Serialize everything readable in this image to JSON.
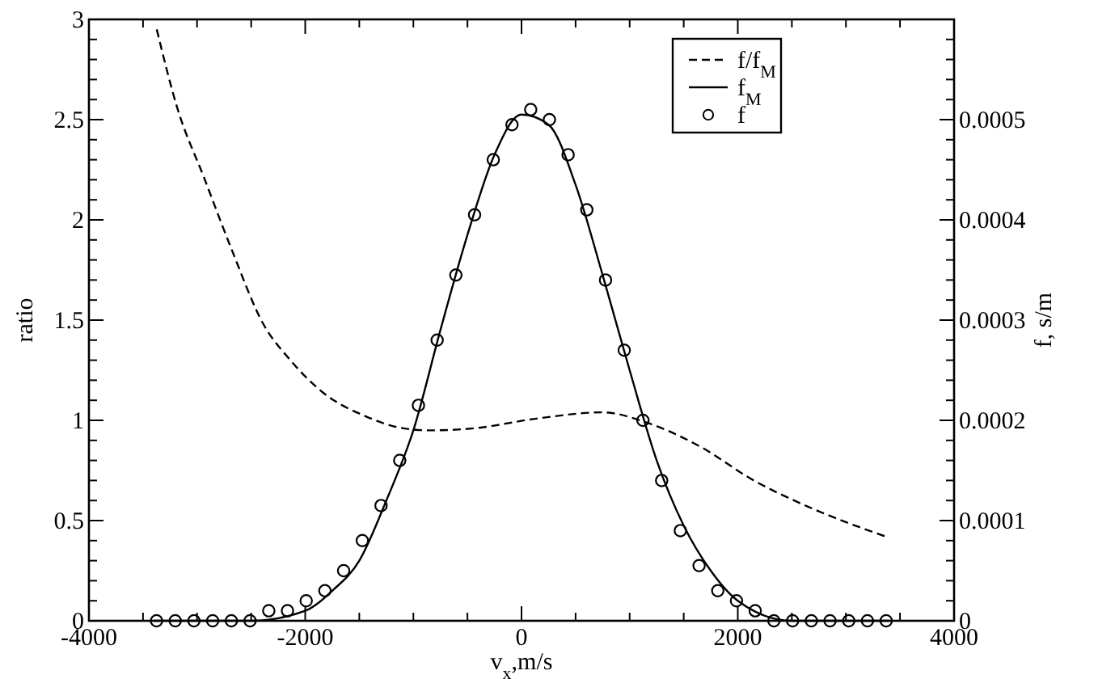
{
  "chart_data": {
    "type": "line",
    "xlabel": "v$_{x}$,m/s",
    "ylabel": "ratio",
    "y2label": "f, s/m",
    "xlim": [
      -4000,
      4000
    ],
    "xticks": [
      -4000,
      {
        "value": -3500,
        "label": null
      },
      {
        "value": -3000,
        "label": null
      },
      {
        "value": -2500,
        "label": null
      },
      -2000,
      {
        "value": -1500,
        "label": null
      },
      {
        "value": -1000,
        "label": null
      },
      {
        "value": -500,
        "label": null
      },
      0,
      {
        "value": 500,
        "label": null
      },
      {
        "value": 1000,
        "label": null
      },
      {
        "value": 1500,
        "label": null
      },
      2000,
      {
        "value": 2500,
        "label": null
      },
      {
        "value": 3000,
        "label": null
      },
      {
        "value": 3500,
        "label": null
      },
      4000
    ],
    "ylim": [
      0,
      3
    ],
    "yticks": [
      0,
      {
        "value": 0.1,
        "label": null
      },
      {
        "value": 0.2,
        "label": null
      },
      {
        "value": 0.3,
        "label": null
      },
      {
        "value": 0.4,
        "label": null
      },
      0.5,
      {
        "value": 0.6,
        "label": null
      },
      {
        "value": 0.7,
        "label": null
      },
      {
        "value": 0.8,
        "label": null
      },
      {
        "value": 0.9,
        "label": null
      },
      1,
      {
        "value": 1.1,
        "label": null
      },
      {
        "value": 1.2,
        "label": null
      },
      {
        "value": 1.3,
        "label": null
      },
      {
        "value": 1.4,
        "label": null
      },
      1.5,
      {
        "value": 1.6,
        "label": null
      },
      {
        "value": 1.7,
        "label": null
      },
      {
        "value": 1.8,
        "label": null
      },
      {
        "value": 1.9,
        "label": null
      },
      2,
      {
        "value": 2.1,
        "label": null
      },
      {
        "value": 2.2,
        "label": null
      },
      {
        "value": 2.3,
        "label": null
      },
      {
        "value": 2.4,
        "label": null
      },
      2.5,
      {
        "value": 2.6,
        "label": null
      },
      {
        "value": 2.7,
        "label": null
      },
      {
        "value": 2.8,
        "label": null
      },
      {
        "value": 2.9,
        "label": null
      },
      3
    ],
    "y2lim": [
      0,
      0.0006
    ],
    "y2ticks": [
      0,
      {
        "value": 2e-05,
        "label": null
      },
      {
        "value": 4e-05,
        "label": null
      },
      {
        "value": 6e-05,
        "label": null
      },
      {
        "value": 8e-05,
        "label": null
      },
      0.0001,
      {
        "value": 0.00012,
        "label": null
      },
      {
        "value": 0.00014,
        "label": null
      },
      {
        "value": 0.00016,
        "label": null
      },
      {
        "value": 0.00018,
        "label": null
      },
      0.0002,
      {
        "value": 0.00022,
        "label": null
      },
      {
        "value": 0.00024,
        "label": null
      },
      {
        "value": 0.00026,
        "label": null
      },
      {
        "value": 0.00028,
        "label": null
      },
      0.0003,
      {
        "value": 0.00032,
        "label": null
      },
      {
        "value": 0.00034,
        "label": null
      },
      {
        "value": 0.00036,
        "label": null
      },
      {
        "value": 0.00038,
        "label": null
      },
      0.0004,
      {
        "value": 0.00042,
        "label": null
      },
      {
        "value": 0.00044,
        "label": null
      },
      {
        "value": 0.00046,
        "label": null
      },
      {
        "value": 0.00048,
        "label": null
      },
      0.0005,
      {
        "value": 0.00052,
        "label": null
      },
      {
        "value": 0.00054,
        "label": null
      },
      {
        "value": 0.00056,
        "label": null
      },
      {
        "value": 0.00058,
        "label": null
      },
      {
        "value": 0.0006,
        "label": null
      }
    ],
    "grid": false,
    "legend": "top right",
    "series": [
      {
        "name": "f/f$_{M}$",
        "line_style": "dashed",
        "color": "#000000",
        "x": [
          -3373,
          -3184,
          -2935,
          -2686,
          -2387,
          -2137,
          -1839,
          -1440,
          -1091,
          -842,
          -444,
          154,
          752,
          1151,
          1649,
          2148,
          2646,
          3369
        ],
        "values": [
          2.95,
          2.56,
          2.21,
          1.86,
          1.48,
          1.3,
          1.14,
          1.02,
          0.96,
          0.95,
          0.96,
          1.01,
          1.04,
          0.99,
          0.87,
          0.7,
          0.57,
          0.42
        ]
      },
      {
        "name": "f$_{M}$",
        "line_style": "solid",
        "axis": "y2",
        "color": "#000000",
        "x": [
          -3400,
          -3000,
          -2500,
          -2000,
          -1750,
          -1500,
          -1250,
          -1000,
          -750,
          -500,
          -250,
          0,
          250,
          500,
          750,
          1000,
          1250,
          1500,
          1750,
          2000,
          2500,
          3000,
          3400
        ],
        "values": [
          0,
          0,
          0,
          1e-05,
          3e-05,
          6e-05,
          0.00012,
          0.00019,
          0.00029,
          0.000385,
          0.000465,
          0.000505,
          0.000495,
          0.000435,
          0.000345,
          0.00025,
          0.00016,
          9.5e-05,
          5e-05,
          2e-05,
          0,
          0,
          0
        ]
      },
      {
        "name": "f",
        "type": "scatter",
        "marker": "circle",
        "axis": "y2",
        "color": "#000000",
        "x": [
          -3375,
          -3202,
          -3029,
          -2856,
          -2683,
          -2510,
          -2337,
          -2164,
          -1991,
          -1818,
          -1645,
          -1472,
          -1299,
          -1126,
          -953,
          -780,
          -607,
          -434,
          -261,
          -88,
          85,
          258,
          431,
          604,
          777,
          950,
          1123,
          1296,
          1469,
          1642,
          1815,
          1988,
          2161,
          2334,
          2507,
          2680,
          2853,
          3026,
          3199,
          3372
        ],
        "values": [
          0,
          0,
          0,
          0,
          0,
          0,
          1e-05,
          1e-05,
          2e-05,
          3e-05,
          5e-05,
          8e-05,
          0.000115,
          0.00016,
          0.000215,
          0.00028,
          0.000345,
          0.000405,
          0.00046,
          0.000495,
          0.00051,
          0.0005,
          0.000465,
          0.00041,
          0.00034,
          0.00027,
          0.0002,
          0.00014,
          9e-05,
          5.5e-05,
          3e-05,
          2e-05,
          1e-05,
          0,
          0,
          0,
          0,
          0,
          0,
          0
        ]
      }
    ]
  }
}
